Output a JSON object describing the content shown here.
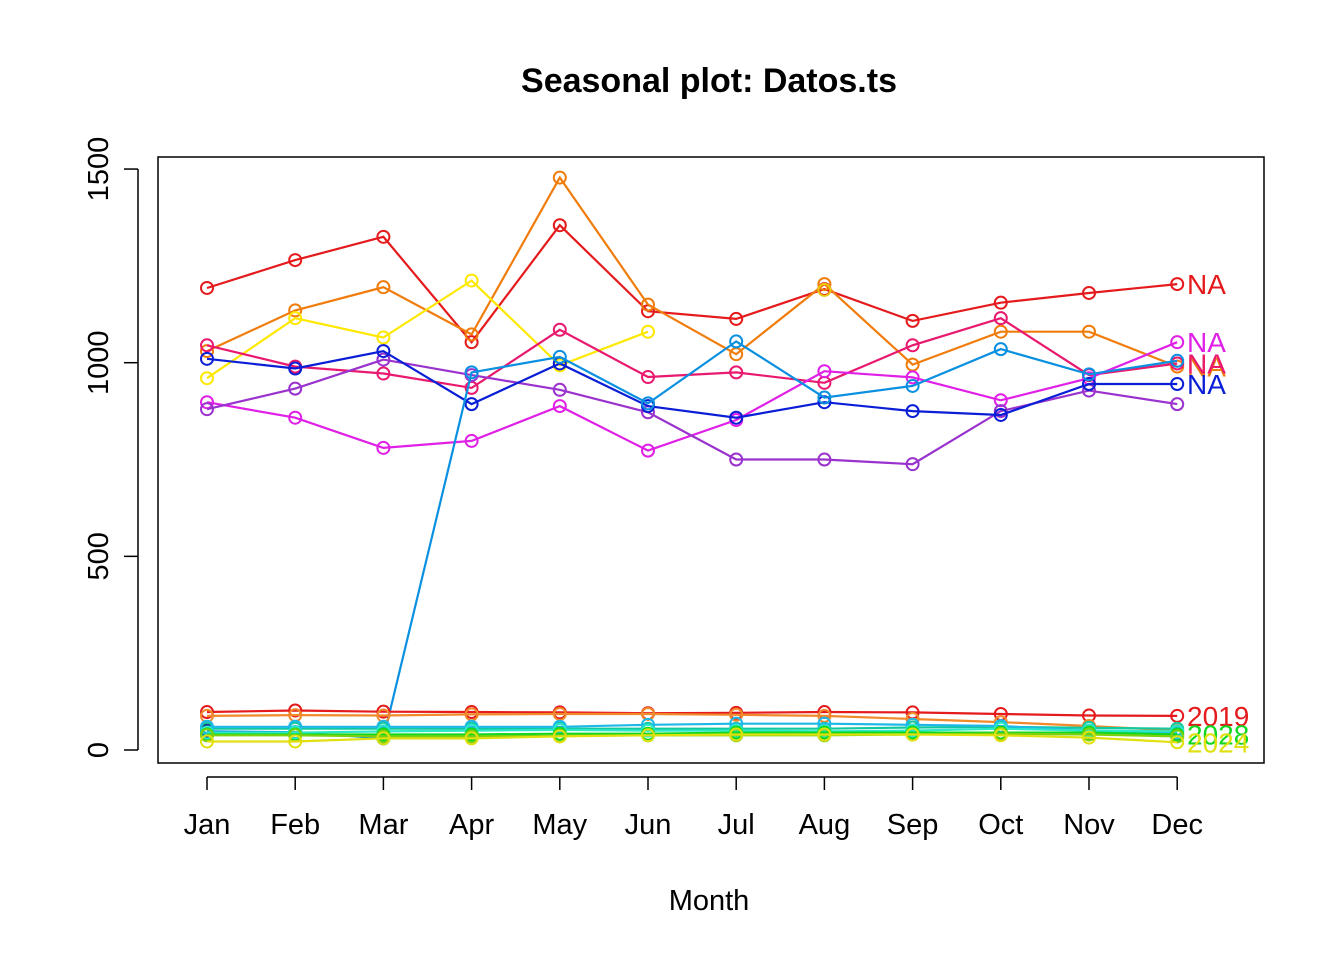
{
  "chart_data": {
    "type": "line",
    "title": "Seasonal plot: Datos.ts",
    "xlabel": "Month",
    "ylabel": "",
    "categories": [
      "Jan",
      "Feb",
      "Mar",
      "Apr",
      "May",
      "Jun",
      "Jul",
      "Aug",
      "Sep",
      "Oct",
      "Nov",
      "Dec"
    ],
    "ylim": [
      -30,
      1530
    ],
    "yticks": [
      0,
      500,
      1000,
      1500
    ],
    "grid": false,
    "legend": "labels at right end of each line",
    "series": [
      {
        "name": "NA",
        "color": "#E41A1C",
        "label": "NA",
        "values": [
          1193,
          1265,
          1325,
          1053,
          1355,
          1133,
          1113,
          1190,
          1108,
          1155,
          1180,
          1203
        ]
      },
      {
        "name": "NA",
        "color": "#F07C0C",
        "label": "NA",
        "values": [
          1030,
          1135,
          1195,
          1073,
          1478,
          1150,
          1022,
          1203,
          995,
          1080,
          1080,
          990
        ]
      },
      {
        "name": "NA",
        "color": "#EAC80E",
        "label": "",
        "values": [
          null,
          null,
          null,
          null,
          null,
          null,
          null,
          1188,
          null,
          null,
          null,
          null
        ]
      },
      {
        "name": "NA",
        "color": "#FFE800",
        "label": "",
        "values": [
          960,
          1115,
          1065,
          1212,
          993,
          1080,
          null,
          null,
          null,
          null,
          null,
          null
        ]
      },
      {
        "name": "NA",
        "color": "#E8196E",
        "label": "NA",
        "values": [
          1045,
          990,
          972,
          935,
          1085,
          963,
          975,
          948,
          1045,
          1115,
          968,
          998
        ]
      },
      {
        "name": "NA",
        "color": "#E020E6",
        "label": "NA",
        "values": [
          898,
          858,
          780,
          798,
          888,
          773,
          852,
          978,
          962,
          903,
          960,
          1053
        ]
      },
      {
        "name": "NA",
        "color": "#9A32CD",
        "label": "",
        "values": [
          880,
          933,
          1008,
          968,
          930,
          872,
          750,
          750,
          738,
          875,
          928,
          893
        ]
      },
      {
        "name": "NA",
        "color": "#0A1ED6",
        "label": "NA",
        "values": [
          1010,
          985,
          1030,
          893,
          998,
          888,
          858,
          898,
          875,
          865,
          945,
          945
        ]
      },
      {
        "name": "NA",
        "color": "#0A90E0",
        "label": "",
        "values": [
          null,
          null,
          30,
          975,
          1015,
          895,
          1055,
          910,
          940,
          1035,
          970,
          1005
        ]
      },
      {
        "name": "2019",
        "color": "#E41A1C",
        "label": "2019",
        "values": [
          98,
          102,
          99,
          98,
          97,
          95,
          96,
          98,
          97,
          93,
          89,
          88
        ]
      },
      {
        "name": "",
        "color": "#F08A2A",
        "label": "",
        "values": [
          88,
          90,
          89,
          92,
          93,
          93,
          91,
          88,
          80,
          72,
          62,
          50
        ]
      },
      {
        "name": "",
        "color": "#0A90E0",
        "label": "",
        "values": [
          48,
          46,
          30,
          null,
          null,
          null,
          null,
          null,
          null,
          null,
          null,
          null
        ]
      },
      {
        "name": "",
        "color": "#1E2A8C",
        "label": "",
        "values": [
          50,
          null,
          null,
          null,
          null,
          null,
          null,
          null,
          null,
          null,
          null,
          null
        ]
      },
      {
        "name": "",
        "color": "#12C8A0",
        "label": "",
        "values": [
          55,
          55,
          55,
          55,
          55,
          55,
          55,
          55,
          58,
          60,
          57,
          55
        ]
      },
      {
        "name": "",
        "color": "#1EB8E8",
        "label": "",
        "values": [
          60,
          60,
          60,
          60,
          60,
          65,
          68,
          68,
          65,
          62,
          50,
          45
        ]
      },
      {
        "name": "",
        "color": "#2AE8C8",
        "label": "",
        "values": [
          45,
          45,
          48,
          50,
          52,
          50,
          50,
          48,
          50,
          55,
          50,
          48
        ]
      },
      {
        "name": "2028",
        "color": "#10D820",
        "label": "2028",
        "values": [
          40,
          40,
          40,
          40,
          42,
          42,
          45,
          45,
          45,
          45,
          45,
          40
        ]
      },
      {
        "name": "",
        "color": "#7CD010",
        "label": "",
        "values": [
          38,
          38,
          35,
          35,
          37,
          38,
          38,
          38,
          40,
          42,
          40,
          35
        ]
      },
      {
        "name": "2024",
        "color": "#E0E010",
        "label": "2024",
        "values": [
          22,
          22,
          30,
          30,
          35,
          38,
          40,
          40,
          40,
          38,
          32,
          20
        ]
      }
    ]
  },
  "labels": {
    "series_end": [
      {
        "text": "NA",
        "color": "#E41A1C"
      },
      {
        "text": "NA",
        "color": "#E020E6"
      },
      {
        "text": "NA",
        "color": "#F07C0C"
      },
      {
        "text": "NA",
        "color": "#0A1ED6"
      },
      {
        "text": "NA",
        "color": "#9A32CD"
      },
      {
        "text": "2019",
        "color": "#E41A1C"
      },
      {
        "text": "2028",
        "color": "#10D820"
      },
      {
        "text": "2024",
        "color": "#E0E010"
      }
    ]
  }
}
